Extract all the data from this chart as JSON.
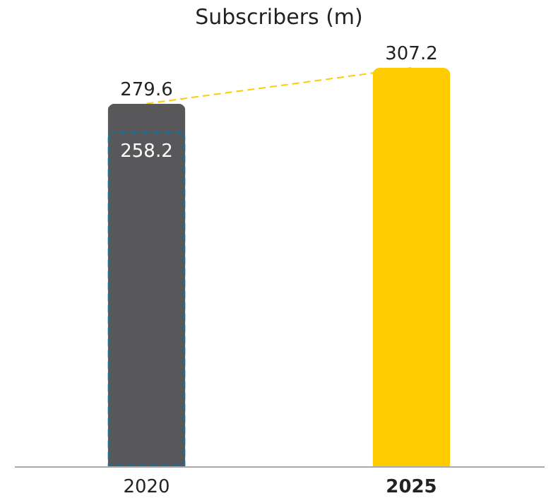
{
  "chart_data": {
    "type": "bar",
    "title": "Subscribers (m)",
    "categories": [
      "2020",
      "2025"
    ],
    "data_labels": true,
    "series": [
      {
        "colors": [
          "#58585a",
          "#ffcc00"
        ],
        "values": [
          279.6,
          307.2
        ]
      },
      {
        "color": "#1b6f94",
        "line_style": "dashed",
        "values": [
          258.2,
          null
        ]
      },
      {
        "type": "line",
        "color": "#ffcc00",
        "line_style": "dashed",
        "marker": "none",
        "values": [
          279.6,
          307.2
        ],
        "value_labels": [
          null,
          null
        ]
      }
    ]
  }
}
